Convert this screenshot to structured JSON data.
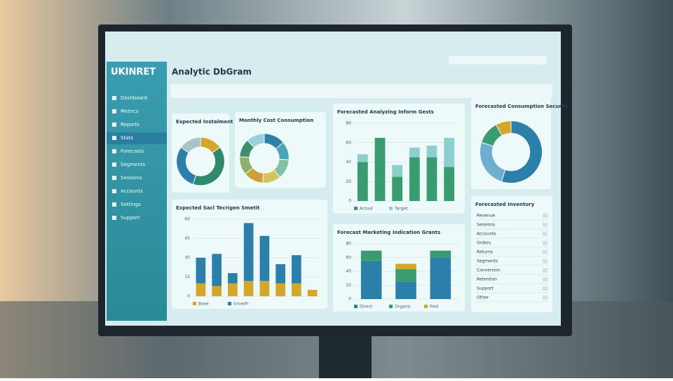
{
  "header": {
    "logo": "UKINRET",
    "title": "Analytic DbGram"
  },
  "sidebar": {
    "items": [
      "Dashboard",
      "Metrics",
      "Reports",
      "Stats",
      "Forecasts",
      "Segments",
      "Sessions",
      "Accounts",
      "Settings",
      "Support"
    ]
  },
  "panels": [
    {
      "title": "Expected Instalment",
      "type": "donut",
      "values": [
        15,
        40,
        30,
        15
      ],
      "colors": [
        "#d4a62a",
        "#2f8a6a",
        "#2b7fa8",
        "#a7c4c9"
      ]
    },
    {
      "title": "Monthly Cost Consumption",
      "type": "donut",
      "values": [
        14,
        12,
        13,
        12,
        13,
        12,
        12,
        12
      ],
      "colors": [
        "#2b7fa8",
        "#4aa3b8",
        "#7fc1a0",
        "#d4c45a",
        "#c9a23a",
        "#8fb06a",
        "#3f8f6e",
        "#9cd0d8"
      ]
    },
    {
      "title": "Forecasted Analyzing Inform Gests",
      "type": "stacked-bar",
      "ylim": [
        0,
        80
      ],
      "yticks": [
        0,
        20,
        40,
        60,
        80
      ],
      "series": [
        {
          "name": "Actual",
          "color": "#3a9a70",
          "values": [
            40,
            65,
            25,
            45,
            45,
            35
          ]
        },
        {
          "name": "Target",
          "color": "#8ccfcc",
          "values": [
            8,
            0,
            12,
            10,
            12,
            30
          ]
        }
      ]
    },
    {
      "title": "Forecasted Consumption Security",
      "type": "donut",
      "values": [
        55,
        25,
        12,
        8
      ],
      "colors": [
        "#2b7fa8",
        "#6faed0",
        "#3a9a70",
        "#d4a62a"
      ]
    },
    {
      "title": "Expected Sacl Tecrigen Smetit",
      "type": "stacked-bar",
      "ylim": [
        0,
        60
      ],
      "yticks": [
        0,
        15,
        30,
        45,
        60
      ],
      "series": [
        {
          "name": "Base",
          "color": "#d4a62a",
          "values": [
            10,
            8,
            10,
            12,
            12,
            10,
            10,
            5
          ]
        },
        {
          "name": "Growth",
          "color": "#2b7fa8",
          "values": [
            20,
            25,
            8,
            45,
            35,
            15,
            22,
            0
          ]
        }
      ]
    },
    {
      "title": "Forecast Marketing Indication Grants",
      "type": "stacked-bar",
      "ylim": [
        0,
        80
      ],
      "yticks": [
        0,
        20,
        40,
        60,
        80
      ],
      "series": [
        {
          "name": "Direct",
          "color": "#2b7fa8",
          "values": [
            55,
            25,
            60
          ]
        },
        {
          "name": "Organic",
          "color": "#3a9a70",
          "values": [
            15,
            18,
            10
          ]
        },
        {
          "name": "Paid",
          "color": "#d4a62a",
          "values": [
            0,
            8,
            0
          ]
        }
      ]
    },
    {
      "title": "Forecasted Inventory",
      "type": "table",
      "rows": [
        "Revenue",
        "Sessions",
        "Accounts",
        "Orders",
        "Returns",
        "Segments",
        "Conversion",
        "Retention",
        "Support",
        "Other"
      ]
    }
  ]
}
